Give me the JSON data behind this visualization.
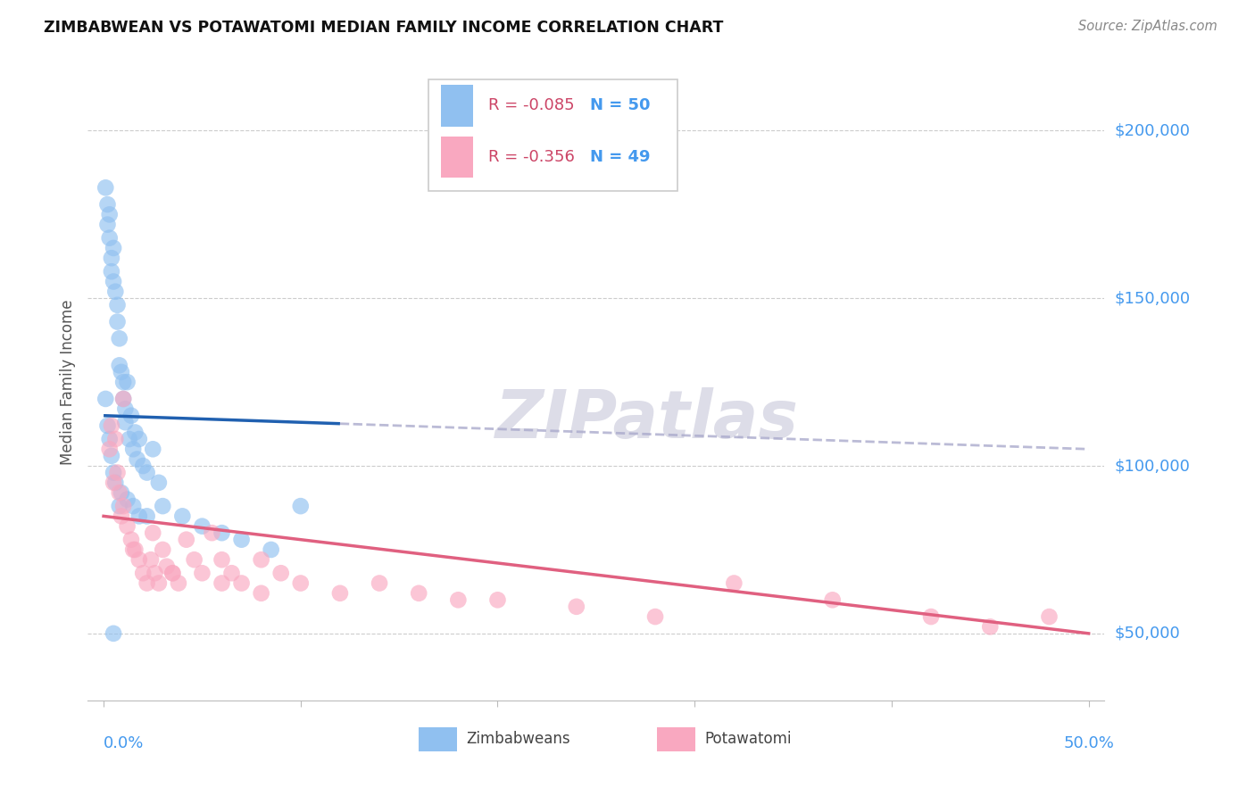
{
  "title": "ZIMBABWEAN VS POTAWATOMI MEDIAN FAMILY INCOME CORRELATION CHART",
  "source": "Source: ZipAtlas.com",
  "ylabel": "Median Family Income",
  "ytick_labels": [
    "$50,000",
    "$100,000",
    "$150,000",
    "$200,000"
  ],
  "ytick_values": [
    50000,
    100000,
    150000,
    200000
  ],
  "legend_label1": "Zimbabweans",
  "legend_label2": "Potawatomi",
  "legend_R1": "R = -0.085",
  "legend_N1": "N = 50",
  "legend_R2": "R = -0.356",
  "legend_N2": "N = 49",
  "color_blue": "#90C0F0",
  "color_pink": "#F9A8C0",
  "color_blue_line": "#2060B0",
  "color_pink_line": "#E06080",
  "color_dashed": "#AAAACC",
  "color_axis_label": "#4499EE",
  "watermark": "ZIPatlas",
  "xlim": [
    0.0,
    0.5
  ],
  "ylim_min": 30000,
  "ylim_max": 220000,
  "zim_x": [
    0.001,
    0.002,
    0.002,
    0.003,
    0.003,
    0.004,
    0.004,
    0.005,
    0.005,
    0.006,
    0.007,
    0.007,
    0.008,
    0.008,
    0.009,
    0.01,
    0.01,
    0.011,
    0.011,
    0.012,
    0.013,
    0.014,
    0.015,
    0.016,
    0.017,
    0.018,
    0.02,
    0.022,
    0.025,
    0.028,
    0.001,
    0.002,
    0.003,
    0.004,
    0.005,
    0.006,
    0.008,
    0.009,
    0.012,
    0.015,
    0.018,
    0.022,
    0.03,
    0.04,
    0.05,
    0.06,
    0.07,
    0.085,
    0.1,
    0.005
  ],
  "zim_y": [
    183000,
    178000,
    172000,
    168000,
    175000,
    162000,
    158000,
    165000,
    155000,
    152000,
    148000,
    143000,
    138000,
    130000,
    128000,
    125000,
    120000,
    117000,
    113000,
    125000,
    108000,
    115000,
    105000,
    110000,
    102000,
    108000,
    100000,
    98000,
    105000,
    95000,
    120000,
    112000,
    108000,
    103000,
    98000,
    95000,
    88000,
    92000,
    90000,
    88000,
    85000,
    85000,
    88000,
    85000,
    82000,
    80000,
    78000,
    75000,
    88000,
    50000
  ],
  "pot_x": [
    0.003,
    0.004,
    0.005,
    0.006,
    0.007,
    0.008,
    0.009,
    0.01,
    0.012,
    0.014,
    0.016,
    0.018,
    0.02,
    0.022,
    0.024,
    0.026,
    0.028,
    0.03,
    0.032,
    0.035,
    0.038,
    0.042,
    0.046,
    0.05,
    0.055,
    0.06,
    0.065,
    0.07,
    0.08,
    0.09,
    0.1,
    0.12,
    0.14,
    0.16,
    0.2,
    0.24,
    0.28,
    0.32,
    0.37,
    0.42,
    0.45,
    0.48,
    0.01,
    0.015,
    0.025,
    0.035,
    0.06,
    0.08,
    0.18
  ],
  "pot_y": [
    105000,
    112000,
    95000,
    108000,
    98000,
    92000,
    85000,
    88000,
    82000,
    78000,
    75000,
    72000,
    68000,
    65000,
    72000,
    68000,
    65000,
    75000,
    70000,
    68000,
    65000,
    78000,
    72000,
    68000,
    80000,
    72000,
    68000,
    65000,
    72000,
    68000,
    65000,
    62000,
    65000,
    62000,
    60000,
    58000,
    55000,
    65000,
    60000,
    55000,
    52000,
    55000,
    120000,
    75000,
    80000,
    68000,
    65000,
    62000,
    60000
  ]
}
